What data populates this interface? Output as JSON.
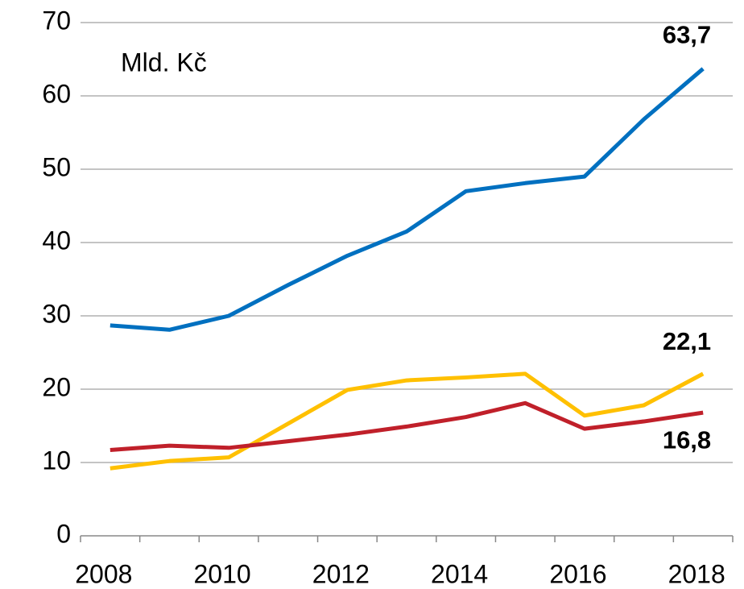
{
  "chart_data": {
    "type": "line",
    "annotation": "Mld. Kč",
    "categories": [
      "2008",
      null,
      "2010",
      null,
      "2012",
      null,
      "2014",
      null,
      "2016",
      null,
      "2018"
    ],
    "series": [
      {
        "color": "#0070c0",
        "values": [
          28.7,
          28.1,
          30.0,
          34.2,
          38.2,
          41.5,
          47.0,
          48.1,
          49.0,
          56.8,
          63.7
        ],
        "value_labels": [
          null,
          null,
          null,
          null,
          null,
          null,
          null,
          null,
          null,
          null,
          "63,7"
        ]
      },
      {
        "color": "#ffc000",
        "values": [
          9.2,
          10.2,
          10.7,
          15.3,
          19.9,
          21.2,
          21.6,
          22.1,
          16.4,
          17.8,
          22.1
        ],
        "value_labels": [
          null,
          null,
          null,
          null,
          null,
          null,
          null,
          null,
          null,
          null,
          "22,1"
        ]
      },
      {
        "color": "#c0202a",
        "values": [
          11.7,
          12.3,
          12.0,
          12.9,
          13.8,
          14.9,
          16.2,
          18.1,
          14.6,
          15.6,
          16.8
        ],
        "value_labels": [
          null,
          null,
          null,
          null,
          null,
          null,
          null,
          null,
          null,
          null,
          "16,8"
        ]
      }
    ],
    "ylim": [
      0,
      70
    ],
    "yticks": [
      0,
      10,
      20,
      30,
      40,
      50,
      60,
      70
    ],
    "grid": true
  }
}
